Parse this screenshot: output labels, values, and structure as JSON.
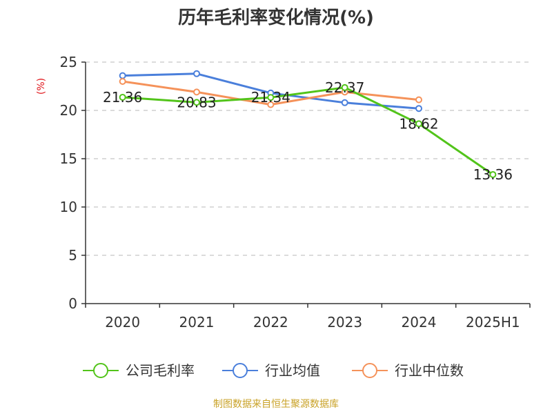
{
  "chart_data": {
    "type": "line",
    "title": "历年毛利率变化情况(%)",
    "ylabel": "(%)",
    "ylim": [
      0,
      25
    ],
    "yticks": [
      0,
      5,
      10,
      15,
      20,
      25
    ],
    "categories": [
      "2020",
      "2021",
      "2022",
      "2023",
      "2024",
      "2025H1"
    ],
    "grid": true,
    "legend_position": "bottom",
    "series": [
      {
        "name": "公司毛利率",
        "color": "#52c41a",
        "values": [
          21.36,
          20.83,
          21.34,
          22.37,
          18.62,
          13.36
        ],
        "labels": [
          "21.36",
          "20.83",
          "21.34",
          "22.37",
          "18.62",
          "13.36"
        ]
      },
      {
        "name": "行业均值",
        "color": "#4a7fdb",
        "values": [
          23.6,
          23.8,
          21.8,
          20.8,
          20.2,
          null
        ]
      },
      {
        "name": "行业中位数",
        "color": "#f5925a",
        "values": [
          23.0,
          21.9,
          20.6,
          21.9,
          21.1,
          null
        ]
      }
    ],
    "source": "制图数据来自恒生聚源数据库"
  }
}
